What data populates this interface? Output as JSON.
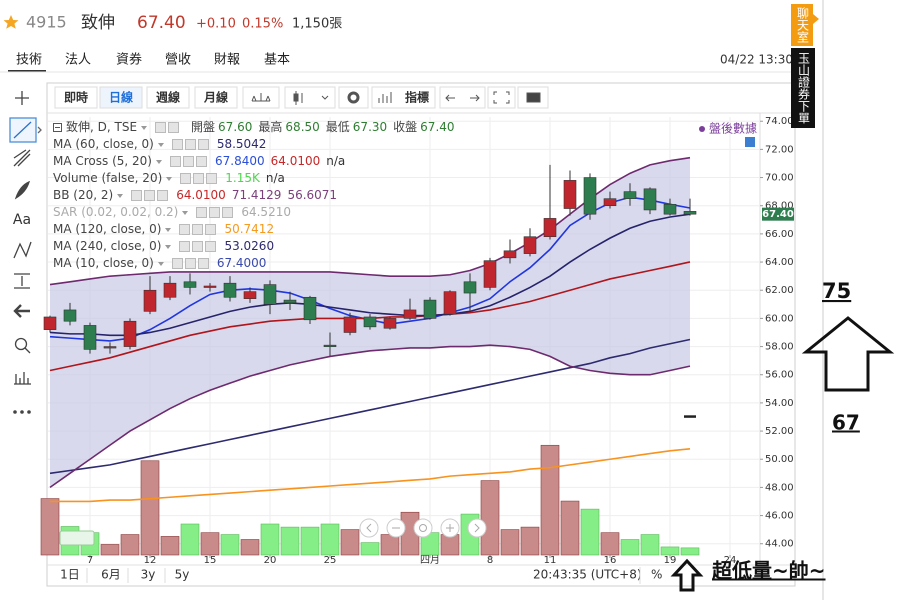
{
  "header": {
    "code": "4915",
    "name": "致伸",
    "price": "67.40",
    "change": "+0.10",
    "change_pct": "0.15%",
    "volume": "1,150張",
    "time": "04/22 13:30"
  },
  "tabs": [
    "技術",
    "法人",
    "資券",
    "營收",
    "財報",
    "基本"
  ],
  "side_tags": {
    "chat": "聊天室",
    "order": "玉山證券下單"
  },
  "left_toolbar": {
    "text_tool": "Aa"
  },
  "toolbar": {
    "periods": [
      "即時",
      "日線",
      "週線",
      "月線"
    ],
    "selected": 1,
    "indicator_button": "指標"
  },
  "bottom_bar": {
    "ranges": [
      "1日",
      "6月",
      "3y",
      "5y"
    ],
    "clock": "20:43:35 (UTC+8)",
    "percent": "%"
  },
  "annotations": {
    "target": "75",
    "base": "67",
    "note": "超低量~帥~"
  },
  "chart_data": {
    "type": "candlestick",
    "symbol_label": "致伸, D, TSE",
    "after_hours": "盤後數據",
    "ohlc_readout": {
      "labels": [
        "開盤",
        "最高",
        "最低",
        "收盤"
      ],
      "values": [
        "67.60",
        "68.50",
        "67.30",
        "67.40"
      ]
    },
    "x": [
      0,
      1,
      2,
      3,
      4,
      5,
      6,
      7,
      8,
      9,
      10,
      11,
      12,
      13,
      14,
      15,
      16,
      17,
      18,
      19,
      20,
      21,
      22,
      23,
      24,
      25,
      26,
      27,
      28,
      29,
      30,
      31,
      32
    ],
    "xlim": [
      -0.1,
      35.5
    ],
    "xticks": [
      {
        "value": 2,
        "label": "7"
      },
      {
        "value": 5,
        "label": "12"
      },
      {
        "value": 8,
        "label": "15"
      },
      {
        "value": 11,
        "label": "20"
      },
      {
        "value": 14,
        "label": "25"
      },
      {
        "value": 19,
        "label": "四月"
      },
      {
        "value": 22,
        "label": "8"
      },
      {
        "value": 25,
        "label": "11"
      },
      {
        "value": 28,
        "label": "16"
      },
      {
        "value": 31,
        "label": "19"
      },
      {
        "value": 34,
        "label": "24"
      }
    ],
    "ylim": [
      43.2,
      74.3
    ],
    "yticks": [
      {
        "value": 44,
        "label": "44.00"
      },
      {
        "value": 46,
        "label": "46.00"
      },
      {
        "value": 48,
        "label": "48.00"
      },
      {
        "value": 50,
        "label": "50.00"
      },
      {
        "value": 52,
        "label": "52.00"
      },
      {
        "value": 54,
        "label": "54.00"
      },
      {
        "value": 56,
        "label": "56.00"
      },
      {
        "value": 58,
        "label": "58.00"
      },
      {
        "value": 60,
        "label": "60.00"
      },
      {
        "value": 62,
        "label": "62.00"
      },
      {
        "value": 64,
        "label": "64.00"
      },
      {
        "value": 66,
        "label": "66.00"
      },
      {
        "value": 68,
        "label": "68.00"
      },
      {
        "value": 70,
        "label": "70.00"
      },
      {
        "value": 72,
        "label": "72.00"
      },
      {
        "value": 74,
        "label": "74.00"
      }
    ],
    "grid": true,
    "candles": {
      "up_color": "#c0262d",
      "down_color": "#2e7d4f",
      "open": [
        59.2,
        60.6,
        59.5,
        57.9,
        58.0,
        60.5,
        61.5,
        62.6,
        62.2,
        62.5,
        61.4,
        62.4,
        61.3,
        61.5,
        58.1,
        59.0,
        60.1,
        59.3,
        60.0,
        61.3,
        60.3,
        62.6,
        62.2,
        64.3,
        64.6,
        65.8,
        67.8,
        70.0,
        68.0,
        69.0,
        69.2,
        68.1,
        67.6
      ],
      "high": [
        60.2,
        61.1,
        59.7,
        58.3,
        60.0,
        63.0,
        63.0,
        63.2,
        62.5,
        63.0,
        62.2,
        62.7,
        61.9,
        61.6,
        59.0,
        60.4,
        60.3,
        60.1,
        61.4,
        61.5,
        62.0,
        63.2,
        64.3,
        65.6,
        66.4,
        70.9,
        70.5,
        70.3,
        69.0,
        69.6,
        69.3,
        68.5,
        68.5
      ],
      "low": [
        59.0,
        59.5,
        57.5,
        57.5,
        57.8,
        60.3,
        61.3,
        61.7,
        61.9,
        61.2,
        61.1,
        60.3,
        60.6,
        59.6,
        57.3,
        58.8,
        59.2,
        59.2,
        59.9,
        59.9,
        60.2,
        60.5,
        62.0,
        63.9,
        64.4,
        65.6,
        67.3,
        67.0,
        67.8,
        68.0,
        67.4,
        67.3,
        67.3
      ],
      "close": [
        60.1,
        59.8,
        57.8,
        58.0,
        59.8,
        62.0,
        62.5,
        62.2,
        62.3,
        61.5,
        61.9,
        61.0,
        61.1,
        59.9,
        58.0,
        60.1,
        59.4,
        60.0,
        60.6,
        60.0,
        61.9,
        61.8,
        64.1,
        64.8,
        65.8,
        67.1,
        69.8,
        67.4,
        68.5,
        68.5,
        67.7,
        67.4,
        67.4
      ]
    },
    "indicators": [
      {
        "name": "MA (60, close, 0)",
        "readouts": [
          "58.5042"
        ],
        "readout_colors": [
          "#2d2a6e"
        ],
        "lines": [
          {
            "color": "#2d2a6e",
            "values": [
              49.0,
              49.2,
              49.4,
              49.6,
              49.9,
              50.2,
              50.5,
              50.8,
              51.1,
              51.4,
              51.7,
              52.0,
              52.3,
              52.6,
              52.9,
              53.2,
              53.5,
              53.8,
              54.1,
              54.4,
              54.7,
              55.0,
              55.3,
              55.6,
              55.9,
              56.2,
              56.5,
              56.8,
              57.2,
              57.5,
              57.9,
              58.2,
              58.5
            ]
          }
        ]
      },
      {
        "name": "MA Cross (5, 20)",
        "readouts": [
          "67.8400",
          "64.0100",
          "n/a"
        ],
        "readout_colors": [
          "#2b4fd6",
          "#c62828",
          "#333333"
        ],
        "lines": [
          {
            "color": "#2036e0",
            "values": [
              58.7,
              58.6,
              58.5,
              58.4,
              58.6,
              59.2,
              60.0,
              60.9,
              61.7,
              62.0,
              62.1,
              62.0,
              61.8,
              61.3,
              60.7,
              60.2,
              59.9,
              59.6,
              59.8,
              60.0,
              60.4,
              60.8,
              61.4,
              62.6,
              63.6,
              64.9,
              66.6,
              67.5,
              68.2,
              68.6,
              68.4,
              68.1,
              67.84
            ]
          },
          {
            "color": "#b0151b",
            "values": [
              56.3,
              56.6,
              56.9,
              57.2,
              57.6,
              58.0,
              58.4,
              58.8,
              59.1,
              59.4,
              59.6,
              59.8,
              59.9,
              60.0,
              60.0,
              60.0,
              60.0,
              60.1,
              60.1,
              60.2,
              60.3,
              60.4,
              60.6,
              60.9,
              61.2,
              61.6,
              62.0,
              62.4,
              62.8,
              63.1,
              63.4,
              63.7,
              64.01
            ]
          }
        ]
      },
      {
        "name": "Volume (false, 20)",
        "readouts": [
          "1.15K",
          "n/a"
        ],
        "readout_colors": [
          "#4fd64f",
          "#333333"
        ],
        "vlim": [
          0,
          20000
        ],
        "up_color": "#c98a8a",
        "down_color": "#86ee86",
        "volumes": [
          9100,
          4600,
          3600,
          1700,
          3300,
          15200,
          3000,
          5000,
          3600,
          3300,
          2500,
          5000,
          4500,
          4500,
          5000,
          4100,
          2000,
          3300,
          6900,
          3600,
          3300,
          6600,
          12000,
          4100,
          4500,
          17700,
          8700,
          7400,
          3600,
          2500,
          3300,
          1300,
          1150
        ]
      },
      {
        "name": "BB (20, 2)",
        "readouts": [
          "64.0100",
          "71.4129",
          "56.6071"
        ],
        "readout_colors": [
          "#c62828",
          "#7b3f7b",
          "#7b3f7b"
        ],
        "band_fill": "#c9c9e6",
        "lines": [
          {
            "color": "#6e2a6e",
            "values": [
              62.4,
              62.6,
              62.8,
              63.0,
              63.1,
              63.2,
              63.3,
              63.3,
              63.3,
              63.3,
              63.3,
              63.3,
              63.3,
              63.3,
              63.3,
              63.2,
              63.1,
              63.0,
              63.0,
              63.0,
              63.1,
              63.4,
              63.9,
              64.6,
              65.4,
              66.3,
              67.4,
              68.5,
              69.5,
              70.3,
              70.9,
              71.2,
              71.41
            ]
          },
          {
            "color": "#6e2a6e",
            "values": [
              48.0,
              49.0,
              50.0,
              51.0,
              52.0,
              52.8,
              53.6,
              54.3,
              54.9,
              55.4,
              55.9,
              56.3,
              56.7,
              57.0,
              57.3,
              57.5,
              57.7,
              57.8,
              57.9,
              57.9,
              58.0,
              58.0,
              58.1,
              58.0,
              57.8,
              57.3,
              56.6,
              56.3,
              56.1,
              56.0,
              56.0,
              56.3,
              56.61
            ]
          }
        ]
      },
      {
        "name": "SAR (0.02, 0.02, 0.2)",
        "readouts": [
          "64.5210"
        ],
        "readout_colors": [
          "#aaaaaa"
        ],
        "muted": true
      },
      {
        "name": "MA (120, close, 0)",
        "readouts": [
          "50.7412"
        ],
        "readout_colors": [
          "#f59b1e"
        ],
        "lines": [
          {
            "color": "#f7931e",
            "values": [
              47.0,
              47.0,
              47.0,
              47.1,
              47.1,
              47.2,
              47.3,
              47.4,
              47.5,
              47.6,
              47.7,
              47.8,
              47.9,
              48.0,
              48.1,
              48.2,
              48.3,
              48.4,
              48.5,
              48.6,
              48.8,
              48.9,
              49.0,
              49.1,
              49.3,
              49.4,
              49.6,
              49.8,
              50.0,
              50.2,
              50.4,
              50.6,
              50.74
            ]
          }
        ]
      },
      {
        "name": "MA (240, close, 0)",
        "readouts": [
          "53.0260"
        ],
        "readout_colors": [
          "#2d2a6e"
        ],
        "lines": [
          {
            "color": "#222222",
            "values": [
              null,
              null,
              null,
              null,
              null,
              null,
              null,
              null,
              null,
              null,
              null,
              null,
              null,
              null,
              null,
              null,
              null,
              null,
              null,
              null,
              null,
              null,
              null,
              null,
              null,
              null,
              null,
              null,
              null,
              null,
              null,
              null,
              53.03
            ]
          }
        ]
      },
      {
        "name": "MA (10, close, 0)",
        "readouts": [
          "67.4000"
        ],
        "readout_colors": [
          "#3949ab"
        ],
        "lines": [
          {
            "color": "#26236b",
            "values": [
              59.0,
              58.9,
              58.9,
              58.8,
              58.8,
              59.0,
              59.3,
              59.7,
              60.1,
              60.5,
              60.8,
              61.0,
              61.1,
              61.0,
              60.8,
              60.6,
              60.4,
              60.3,
              60.2,
              60.2,
              60.3,
              60.5,
              60.9,
              61.5,
              62.2,
              63.0,
              64.0,
              64.9,
              65.7,
              66.4,
              66.9,
              67.2,
              67.4
            ]
          }
        ]
      }
    ]
  }
}
